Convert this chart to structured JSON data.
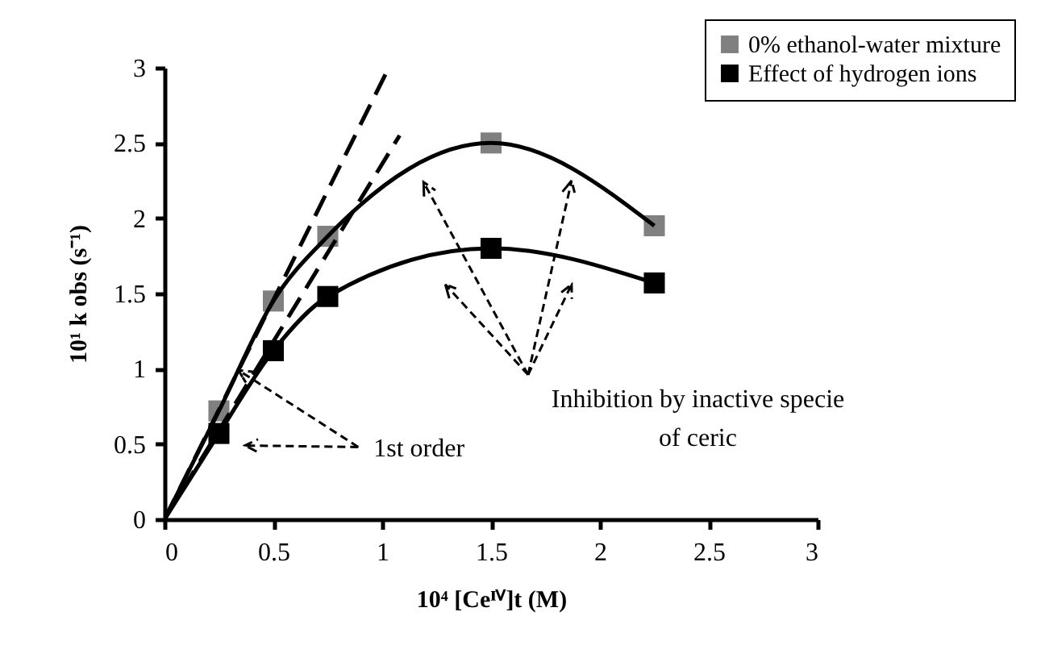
{
  "chart_data": {
    "type": "scatter",
    "xlabel": "10⁴ [Ceᴵⱽ]t (M)",
    "ylabel": "10¹ k obs (s⁻¹)",
    "xlim": [
      0,
      3
    ],
    "xticks": [
      0,
      0.5,
      1,
      1.5,
      2,
      2.5,
      3
    ],
    "ylim": [
      0,
      3
    ],
    "yticks": [
      0,
      0.5,
      1,
      1.5,
      2,
      2.5,
      3
    ],
    "grid": false,
    "legend": "top right",
    "marker": "square",
    "series": [
      {
        "name": "0% ethanol-water mixture",
        "color": "#808080",
        "x": [
          0.25,
          0.5,
          0.75,
          1.5,
          2.25
        ],
        "values": [
          0.72,
          1.45,
          1.88,
          2.5,
          1.95
        ]
      },
      {
        "name": "Effect of hydrogen ions",
        "color": "#000000",
        "x": [
          0.25,
          0.5,
          0.75,
          1.5,
          2.25
        ],
        "values": [
          0.57,
          1.12,
          1.48,
          1.8,
          1.57
        ]
      },
      {
        "type": "line",
        "color": "#000000",
        "line_style": "solid",
        "marker": "none",
        "x": [
          0,
          0.25,
          0.5,
          0.75,
          1.5,
          2.25
        ],
        "values": [
          0,
          0.72,
          1.45,
          1.88,
          2.5,
          1.95
        ]
      },
      {
        "type": "line",
        "color": "#000000",
        "line_style": "solid",
        "marker": "none",
        "x": [
          0,
          0.25,
          0.5,
          0.75,
          1.5,
          2.25
        ],
        "values": [
          0,
          0.57,
          1.12,
          1.48,
          1.8,
          1.57
        ]
      },
      {
        "type": "line",
        "color": "#000000",
        "line_style": "dashed",
        "marker": "none",
        "x": [
          0,
          1.03
        ],
        "values": [
          0,
          3.0
        ]
      },
      {
        "type": "line",
        "color": "#000000",
        "line_style": "dashed",
        "marker": "none",
        "x": [
          0,
          1.08
        ],
        "values": [
          0,
          2.55
        ]
      }
    ],
    "annotations": [
      {
        "text": "1st order",
        "x": 0.34,
        "y": 0.99
      },
      "Inhibition by inactive specie of ceric"
    ]
  }
}
